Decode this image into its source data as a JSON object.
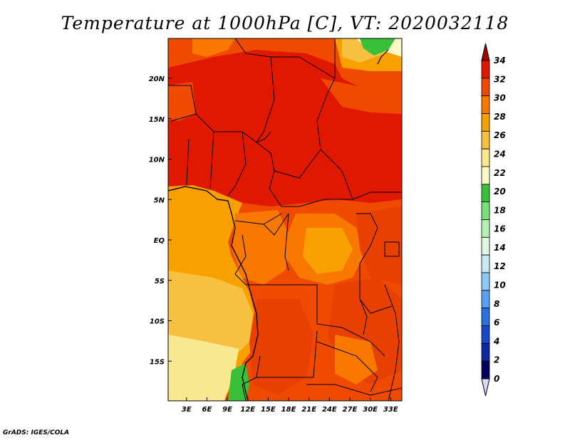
{
  "title": "Temperature at 1000hPa [C], VT: 2020032118",
  "footer": "GrADS: IGES/COLA",
  "map": {
    "lon_range": [
      0,
      35
    ],
    "lat_range": [
      -20,
      25
    ],
    "lon_ticks": [
      "3E",
      "6E",
      "9E",
      "12E",
      "15E",
      "18E",
      "21E",
      "24E",
      "27E",
      "30E",
      "33E"
    ],
    "lat_ticks": [
      "20N",
      "15N",
      "10N",
      "5N",
      "EQ",
      "5S",
      "10S",
      "15S"
    ]
  },
  "colorbar": {
    "levels": [
      "34",
      "32",
      "30",
      "28",
      "26",
      "24",
      "22",
      "20",
      "18",
      "16",
      "14",
      "12",
      "10",
      "8",
      "6",
      "4",
      "2",
      "0"
    ],
    "colors": [
      "#a50000",
      "#e01800",
      "#f04a00",
      "#f87800",
      "#f8a000",
      "#f8c040",
      "#f8e890",
      "#fcf8c8",
      "#38c038",
      "#78e078",
      "#b4f0b4",
      "#e0f8e0",
      "#c8e8f8",
      "#90c8f8",
      "#5aa0f0",
      "#2a70e0",
      "#1848c8",
      "#1028a0",
      "#000060",
      "#d8d8f8"
    ]
  }
}
